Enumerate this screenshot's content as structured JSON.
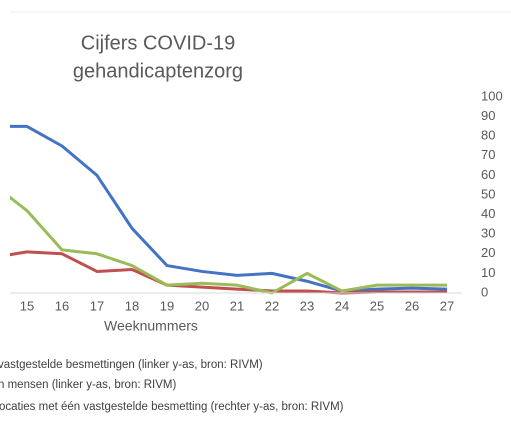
{
  "chart_data": {
    "type": "line",
    "title": [
      "Cijfers  COVID-19",
      "gehandicaptenzorg"
    ],
    "x_label": "Weeknummers",
    "categories": [
      null,
      "15",
      "16",
      "17",
      "18",
      "19",
      "20",
      "21",
      "22",
      "23",
      "24",
      "25",
      "26",
      "27"
    ],
    "series": [
      {
        "name": "vastgestelde besmettingen  (linker y-as, bron: RIVM)",
        "color": "#4472c4",
        "values": [
          85,
          85,
          75,
          60,
          33,
          14,
          11,
          9,
          10,
          6,
          1,
          2,
          2.5,
          2
        ]
      },
      {
        "name": "n mensen  (linker y-as, bron: RIVM)",
        "color": "#c0504d",
        "values": [
          18,
          21,
          20,
          11,
          12,
          4,
          3,
          2,
          1,
          1,
          0,
          0.5,
          0.5,
          0.5
        ]
      },
      {
        "name": "ocaties met één vastgestelde besmetting  (rechter y-as, bron: RIVM)",
        "color": "#9bbb59",
        "values": [
          56,
          42,
          22,
          20,
          14,
          4,
          5,
          4,
          0,
          10,
          1,
          4,
          4,
          4
        ]
      }
    ],
    "ylim": [
      0,
      100
    ],
    "yticks": [
      0,
      10,
      20,
      30,
      40,
      50,
      60,
      70,
      80,
      90,
      100
    ]
  }
}
